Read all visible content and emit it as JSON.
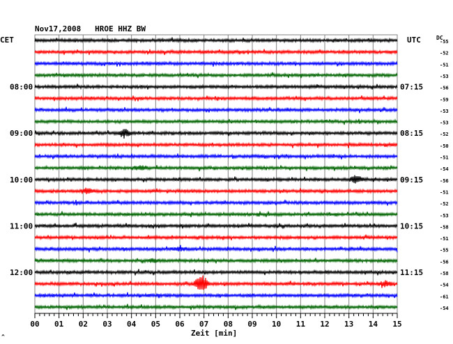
{
  "header": {
    "title": "Nov17,2008   HROE HHZ BW"
  },
  "labels": {
    "left_zone": "CET",
    "right_zone": "UTC",
    "dc_label": "DC",
    "xlabel": "Zeit [min]",
    "corner_mark": "^"
  },
  "colors": {
    "trace_cycle": [
      "#000000",
      "#ff0000",
      "#0000ff",
      "#006400"
    ],
    "grid": "#808080",
    "background": "#ffffff"
  },
  "chart_data": {
    "type": "line",
    "title": "Nov17,2008   HROE HHZ BW",
    "xlabel": "Zeit [min]",
    "ylabel": "",
    "xlim": [
      0,
      15
    ],
    "x_ticks": [
      "00",
      "01",
      "02",
      "03",
      "04",
      "05",
      "06",
      "07",
      "08",
      "09",
      "10",
      "11",
      "12",
      "13",
      "14",
      "15"
    ],
    "minor_ticks_per_minute": 5,
    "grid": true,
    "traces_per_hour": 4,
    "minutes_per_trace": 15,
    "left_time_labels": [
      {
        "row": 4,
        "text": "08:00"
      },
      {
        "row": 8,
        "text": "09:00"
      },
      {
        "row": 12,
        "text": "10:00"
      },
      {
        "row": 16,
        "text": "11:00"
      },
      {
        "row": 20,
        "text": "12:00"
      }
    ],
    "right_time_labels": [
      {
        "row": 0,
        "text": "UTC"
      },
      {
        "row": 4,
        "text": "07:15"
      },
      {
        "row": 8,
        "text": "08:15"
      },
      {
        "row": 12,
        "text": "09:15"
      },
      {
        "row": 16,
        "text": "10:15"
      },
      {
        "row": 20,
        "text": "11:15"
      }
    ],
    "dc_offsets": [
      "-55",
      "-52",
      "-51",
      "-53",
      "-56",
      "-59",
      "-53",
      "-53",
      "-52",
      "-50",
      "-51",
      "-54",
      "-56",
      "-51",
      "-52",
      "-53",
      "-58",
      "-51",
      "-55",
      "-56",
      "-58",
      "-54",
      "-61",
      "-54"
    ],
    "events": [
      {
        "row": 8,
        "minute": 3.7,
        "strength": 5
      },
      {
        "row": 11,
        "minute": 4.4,
        "strength": 3
      },
      {
        "row": 12,
        "minute": 13.3,
        "strength": 5
      },
      {
        "row": 13,
        "minute": 2.2,
        "strength": 4
      },
      {
        "row": 18,
        "minute": 6.0,
        "strength": 3
      },
      {
        "row": 19,
        "minute": 4.9,
        "strength": 2
      },
      {
        "row": 21,
        "minute": 6.9,
        "strength": 13
      },
      {
        "row": 21,
        "minute": 14.5,
        "strength": 4
      }
    ]
  }
}
